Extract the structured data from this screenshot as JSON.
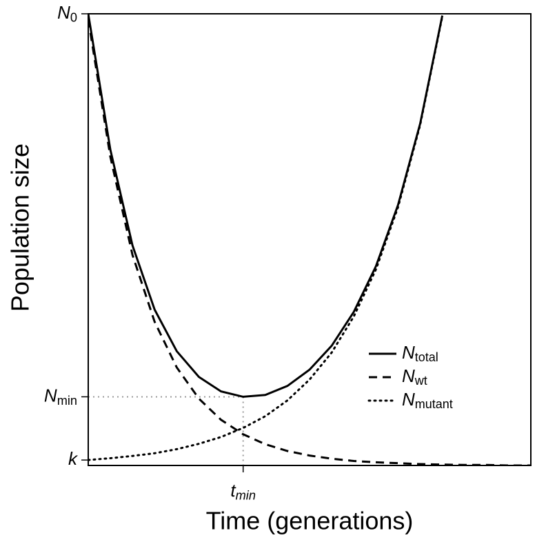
{
  "chart_data": {
    "type": "line",
    "x_label": "Time (generations)",
    "y_label": "Population size",
    "x": [
      0,
      5,
      10,
      15,
      20,
      25,
      30,
      35,
      40,
      45,
      50,
      55,
      60,
      65,
      70,
      75,
      80,
      85,
      90,
      95,
      100
    ],
    "series": [
      {
        "name": "N",
        "subscript": "total",
        "color": "#000000",
        "dash": "solid",
        "values": [
          100,
          69.9,
          48.7,
          34.5,
          25.3,
          19.6,
          16.4,
          15.2,
          15.6,
          17.6,
          21.2,
          26.5,
          34.0,
          44.1,
          57.7,
          75.7,
          99.6,
          null,
          null,
          null,
          null
        ]
      },
      {
        "name": "N",
        "subscript": "wt",
        "color": "#000000",
        "dash": "dashed",
        "values": [
          98.8,
          68.3,
          46.6,
          31.8,
          21.7,
          14.8,
          10.1,
          6.9,
          4.7,
          3.2,
          2.2,
          1.5,
          1.0,
          0.7,
          0.5,
          0.3,
          0.2,
          0.1,
          0.1,
          0,
          0
        ]
      },
      {
        "name": "N",
        "subscript": "mutant",
        "color": "#000000",
        "dash": "dotted",
        "values": [
          1.2,
          1.6,
          2.1,
          2.7,
          3.6,
          4.8,
          6.3,
          8.3,
          10.9,
          14.4,
          19.0,
          25.0,
          33.0,
          43.4,
          57.2,
          75.4,
          99.4,
          null,
          null,
          null,
          null
        ]
      }
    ],
    "xlim": [
      0,
      100
    ],
    "ylim": [
      0,
      100
    ],
    "xticks": [
      {
        "value": 35,
        "label": "t",
        "subscript": "min"
      }
    ],
    "yticks": [
      {
        "value": 100,
        "label": "N",
        "subscript": "0"
      },
      {
        "value": 15.2,
        "label": "N",
        "subscript": "min"
      },
      {
        "value": 1.2,
        "label": "k"
      }
    ],
    "grid": false,
    "legend": "lower right"
  }
}
